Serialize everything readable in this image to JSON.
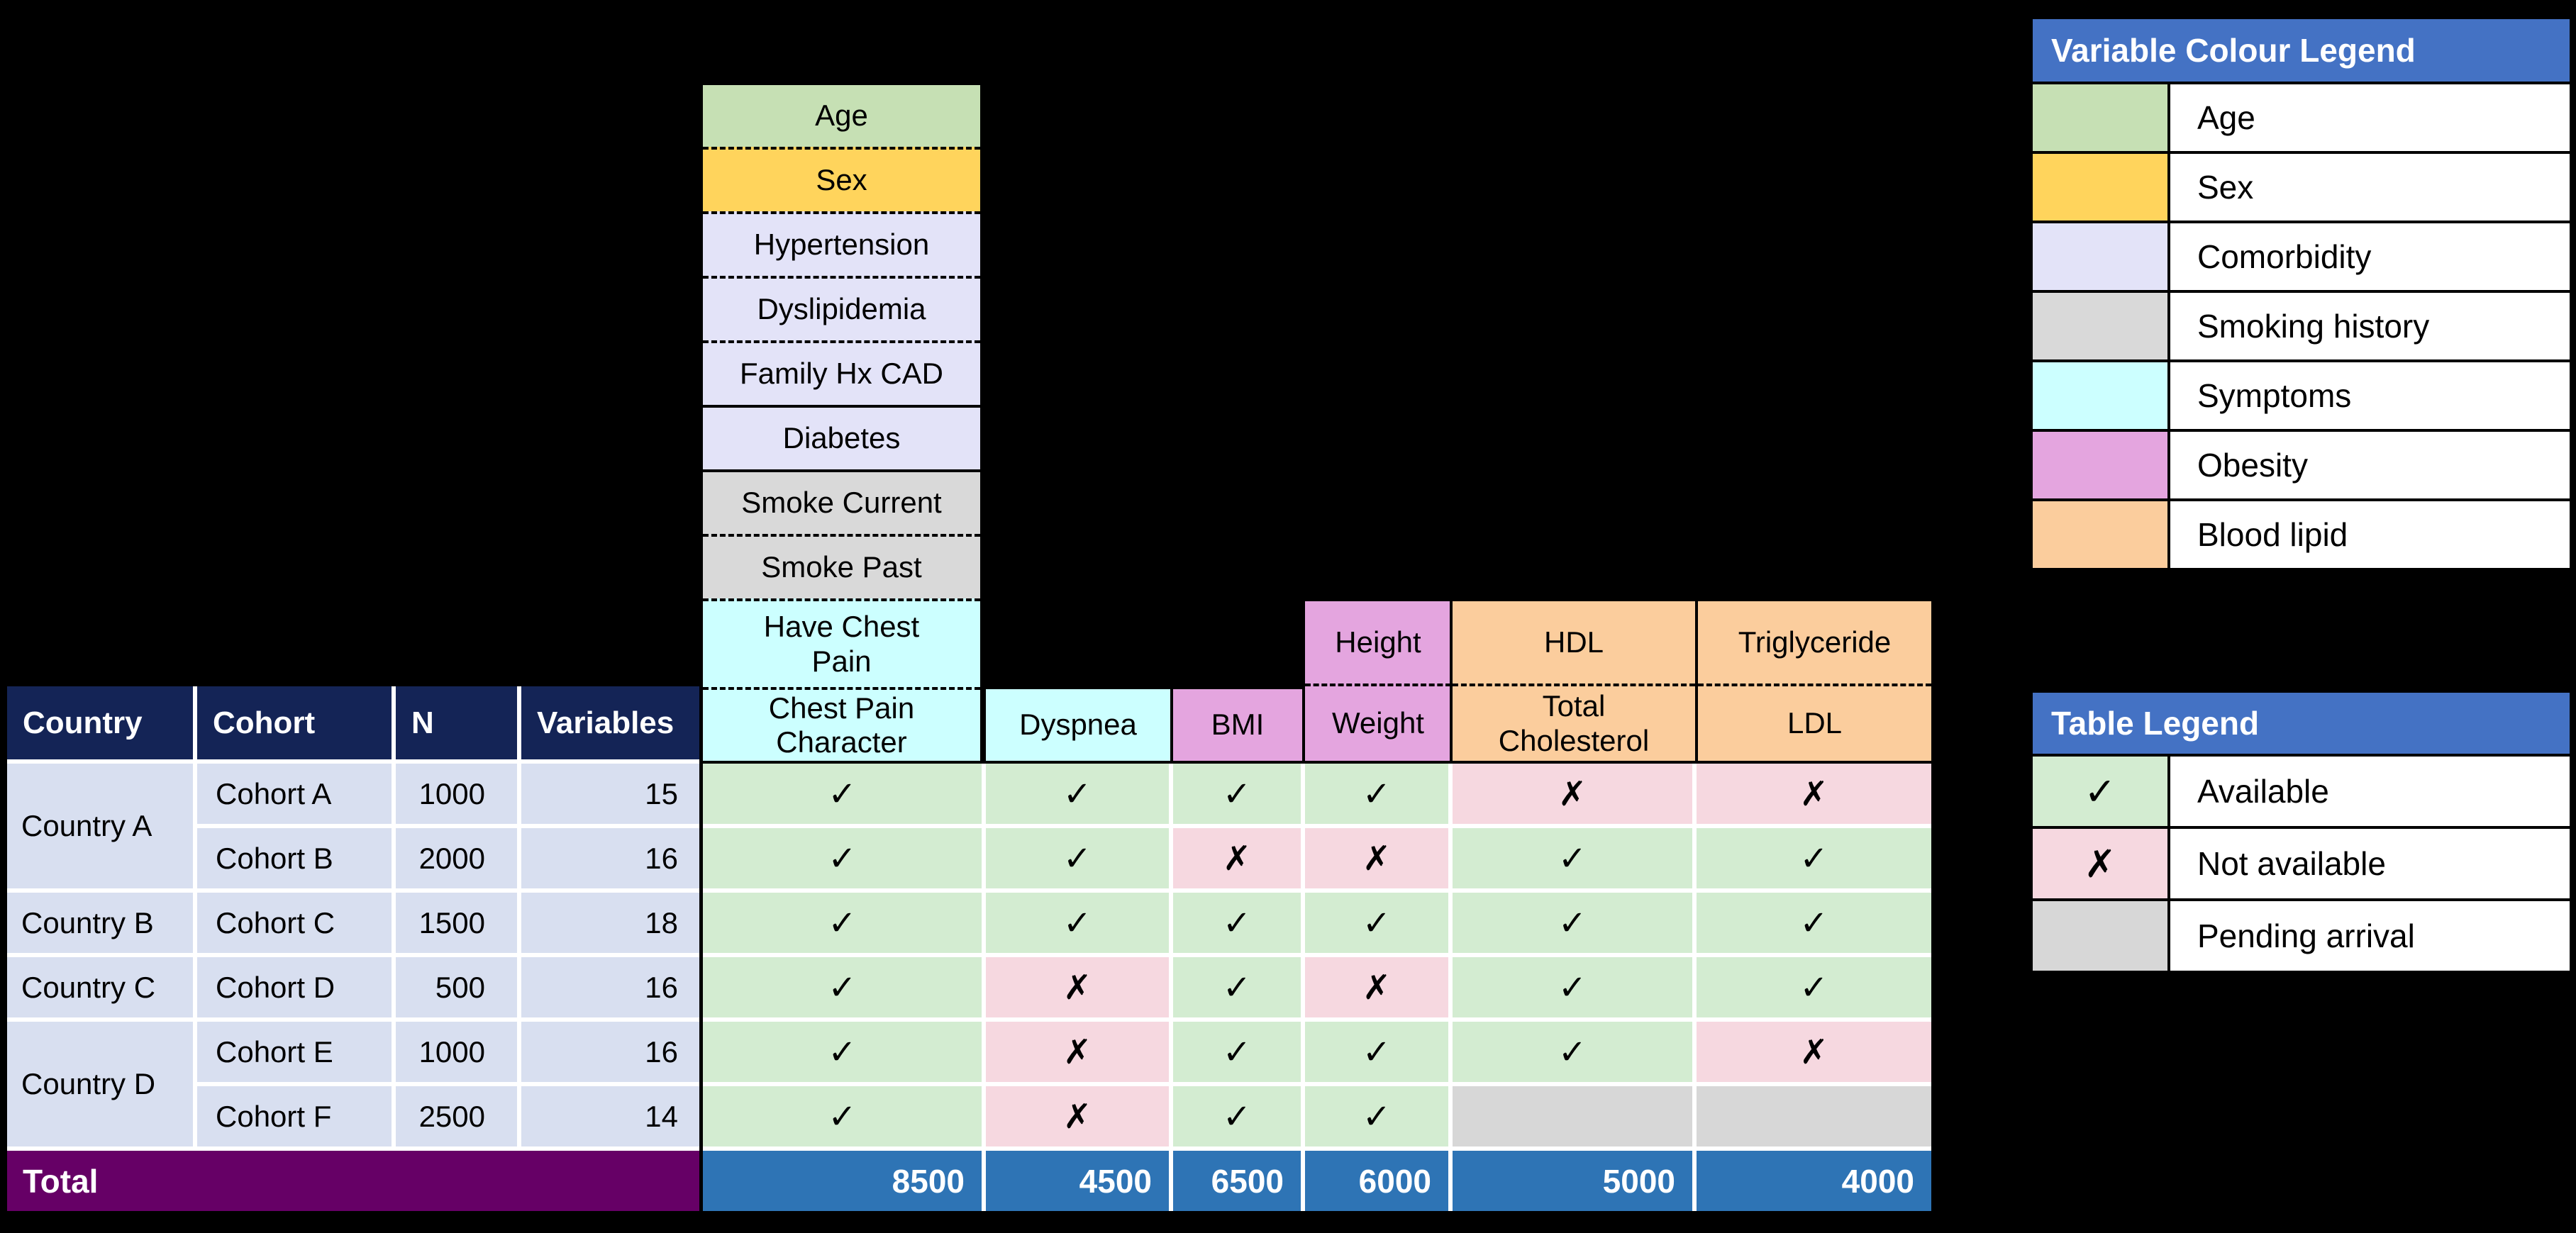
{
  "palette": {
    "header_navy": "#142456",
    "row_lavender": "#d8dff0",
    "total_purple": "#660066",
    "total_blue": "#2e74b5",
    "legend_header_blue": "#4472c4",
    "available_green": "#d3ecd1",
    "not_available_pink": "#f6d8e0",
    "pending_gray": "#d7d7d7",
    "age_green": "#c6e0b4",
    "sex_yellow": "#ffd45c",
    "comorbidity_lavender": "#e3e3f8",
    "smoking_gray": "#d9d9d9",
    "symptoms_cyan": "#ccffff",
    "obesity_pink": "#e4a5df",
    "blood_lipid_orange": "#fbcd9d"
  },
  "left_table": {
    "headers": [
      "Country",
      "Cohort",
      "N",
      "Variables"
    ],
    "countries": [
      {
        "name": "Country A"
      },
      {
        "name": "Country B"
      },
      {
        "name": "Country C"
      },
      {
        "name": "Country D"
      }
    ],
    "rows": [
      {
        "cohort": "Cohort A",
        "n": "1000",
        "variables": "15"
      },
      {
        "cohort": "Cohort B",
        "n": "2000",
        "variables": "16"
      },
      {
        "cohort": "Cohort C",
        "n": "1500",
        "variables": "18"
      },
      {
        "cohort": "Cohort D",
        "n": "500",
        "variables": "16"
      },
      {
        "cohort": "Cohort E",
        "n": "1000",
        "variables": "16"
      },
      {
        "cohort": "Cohort F",
        "n": "2500",
        "variables": "14"
      }
    ]
  },
  "variable_stack": [
    {
      "label": "Age",
      "color": "age",
      "divider": "none"
    },
    {
      "label": "Sex",
      "color": "sex",
      "divider": "dashed"
    },
    {
      "label": "Hypertension",
      "color": "comorbidity",
      "divider": "dashed"
    },
    {
      "label": "Dyslipidemia",
      "color": "comorbidity",
      "divider": "dashed"
    },
    {
      "label": "Family Hx CAD",
      "color": "comorbidity",
      "divider": "dashed"
    },
    {
      "label": "Diabetes",
      "color": "comorbidity",
      "divider": "solid"
    },
    {
      "label": "Smoke Current",
      "color": "smoking",
      "divider": "solid"
    },
    {
      "label": "Smoke Past",
      "color": "smoking",
      "divider": "dashed"
    },
    {
      "label": "Have Chest Pain",
      "color": "symptoms",
      "divider": "dashed"
    },
    {
      "label": "Chest Pain Character",
      "color": "symptoms",
      "divider": "dashed"
    }
  ],
  "header_columns": {
    "dyspnea": {
      "label": "Dyspnea",
      "color": "symptoms"
    },
    "bmi": {
      "label": "BMI",
      "color": "obesity"
    },
    "height_weight": {
      "top": {
        "label": "Height",
        "color": "obesity"
      },
      "bottom": {
        "label": "Weight",
        "color": "obesity"
      }
    },
    "hdl_tc": {
      "top": {
        "label": "HDL",
        "color": "lipid"
      },
      "bottom": {
        "label": "Total Cholesterol",
        "color": "lipid"
      }
    },
    "trig_ldl": {
      "top": {
        "label": "Triglyceride",
        "color": "lipid"
      },
      "bottom": {
        "label": "LDL",
        "color": "lipid"
      }
    }
  },
  "matrix": {
    "rows": [
      {
        "cells": [
          {
            "state": "available",
            "mark": "✓"
          },
          {
            "state": "available",
            "mark": "✓"
          },
          {
            "state": "available",
            "mark": "✓"
          },
          {
            "state": "available",
            "mark": "✓"
          },
          {
            "state": "not_available",
            "mark": "✗"
          },
          {
            "state": "not_available",
            "mark": "✗"
          }
        ]
      },
      {
        "cells": [
          {
            "state": "available",
            "mark": "✓"
          },
          {
            "state": "available",
            "mark": "✓"
          },
          {
            "state": "not_available",
            "mark": "✗"
          },
          {
            "state": "not_available",
            "mark": "✗"
          },
          {
            "state": "available",
            "mark": "✓"
          },
          {
            "state": "available",
            "mark": "✓"
          }
        ]
      },
      {
        "cells": [
          {
            "state": "available",
            "mark": "✓"
          },
          {
            "state": "available",
            "mark": "✓"
          },
          {
            "state": "available",
            "mark": "✓"
          },
          {
            "state": "available",
            "mark": "✓"
          },
          {
            "state": "available",
            "mark": "✓"
          },
          {
            "state": "available",
            "mark": "✓"
          }
        ]
      },
      {
        "cells": [
          {
            "state": "available",
            "mark": "✓"
          },
          {
            "state": "not_available",
            "mark": "✗"
          },
          {
            "state": "available",
            "mark": "✓"
          },
          {
            "state": "not_available",
            "mark": "✗"
          },
          {
            "state": "available",
            "mark": "✓"
          },
          {
            "state": "available",
            "mark": "✓"
          }
        ]
      },
      {
        "cells": [
          {
            "state": "available",
            "mark": "✓"
          },
          {
            "state": "not_available",
            "mark": "✗"
          },
          {
            "state": "available",
            "mark": "✓"
          },
          {
            "state": "available",
            "mark": "✓"
          },
          {
            "state": "available",
            "mark": "✓"
          },
          {
            "state": "not_available",
            "mark": "✗"
          }
        ]
      },
      {
        "cells": [
          {
            "state": "available",
            "mark": "✓"
          },
          {
            "state": "not_available",
            "mark": "✗"
          },
          {
            "state": "available",
            "mark": "✓"
          },
          {
            "state": "available",
            "mark": "✓"
          },
          {
            "state": "pending",
            "mark": ""
          },
          {
            "state": "pending",
            "mark": ""
          }
        ]
      }
    ]
  },
  "totals": {
    "label": "Total",
    "values": [
      "8500",
      "4500",
      "6500",
      "6000",
      "5000",
      "4000"
    ]
  },
  "variable_colour_legend": {
    "title": "Variable Colour Legend",
    "items": [
      {
        "label": "Age",
        "color": "age",
        "hex": "#c6e0b4"
      },
      {
        "label": "Sex",
        "color": "sex",
        "hex": "#ffd45c"
      },
      {
        "label": "Comorbidity",
        "color": "comorbidity",
        "hex": "#e3e3f8"
      },
      {
        "label": "Smoking history",
        "color": "smoking",
        "hex": "#d9d9d9"
      },
      {
        "label": "Symptoms",
        "color": "symptoms",
        "hex": "#ccffff"
      },
      {
        "label": "Obesity",
        "color": "obesity",
        "hex": "#e4a5df"
      },
      {
        "label": "Blood lipid",
        "color": "lipid",
        "hex": "#fbcd9d"
      }
    ]
  },
  "table_legend": {
    "title": "Table Legend",
    "items": [
      {
        "mark": "✓",
        "state": "available",
        "label": "Available"
      },
      {
        "mark": "✗",
        "state": "not_available",
        "label": "Not available"
      },
      {
        "mark": "",
        "state": "pending",
        "label": "Pending arrival"
      }
    ]
  },
  "chart_data": {
    "type": "table",
    "title": "Cohort variable availability matrix",
    "columns": [
      "Chest Pain Character",
      "Dyspnea",
      "BMI",
      "Weight",
      "Total Cholesterol",
      "LDL"
    ],
    "rows": [
      {
        "country": "Country A",
        "cohort": "Cohort A",
        "n": 1000,
        "variables": 15,
        "availability": [
          "available",
          "available",
          "available",
          "available",
          "not_available",
          "not_available"
        ]
      },
      {
        "country": "Country A",
        "cohort": "Cohort B",
        "n": 2000,
        "variables": 16,
        "availability": [
          "available",
          "available",
          "not_available",
          "not_available",
          "available",
          "available"
        ]
      },
      {
        "country": "Country B",
        "cohort": "Cohort C",
        "n": 1500,
        "variables": 18,
        "availability": [
          "available",
          "available",
          "available",
          "available",
          "available",
          "available"
        ]
      },
      {
        "country": "Country C",
        "cohort": "Cohort D",
        "n": 500,
        "variables": 16,
        "availability": [
          "available",
          "not_available",
          "available",
          "not_available",
          "available",
          "available"
        ]
      },
      {
        "country": "Country D",
        "cohort": "Cohort E",
        "n": 1000,
        "variables": 16,
        "availability": [
          "available",
          "not_available",
          "available",
          "available",
          "available",
          "not_available"
        ]
      },
      {
        "country": "Country D",
        "cohort": "Cohort F",
        "n": 2500,
        "variables": 14,
        "availability": [
          "available",
          "not_available",
          "available",
          "available",
          "pending",
          "pending"
        ]
      }
    ],
    "column_totals": [
      8500,
      4500,
      6500,
      6000,
      5000,
      4000
    ],
    "variable_groups": {
      "Age": [
        "Age"
      ],
      "Sex": [
        "Sex"
      ],
      "Comorbidity": [
        "Hypertension",
        "Dyslipidemia",
        "Family Hx CAD",
        "Diabetes"
      ],
      "Smoking history": [
        "Smoke Current",
        "Smoke Past"
      ],
      "Symptoms": [
        "Have Chest Pain",
        "Chest Pain Character",
        "Dyspnea"
      ],
      "Obesity": [
        "BMI",
        "Height",
        "Weight"
      ],
      "Blood lipid": [
        "HDL",
        "Total Cholesterol",
        "Triglyceride",
        "LDL"
      ]
    }
  }
}
